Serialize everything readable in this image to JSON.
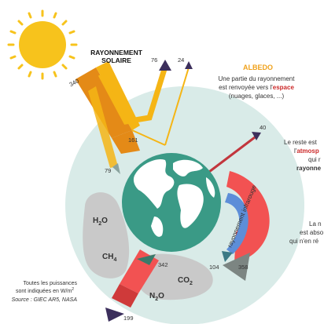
{
  "colors": {
    "sun": "#f7c31c",
    "solar_flow": "#f5b515",
    "solar_flow_dark": "#e48a17",
    "atmosphere": "#d9ebe8",
    "ocean": "#3a9a86",
    "land": "#ffffff",
    "emission_red": "#f25252",
    "ir_red": "#d63a3a",
    "window_blue": "#5d8ed8",
    "gas_blob": "#c9c9c9",
    "dark_arrow": "#3c2f5c",
    "albedo_orange": "#f0a21c",
    "accent_red": "#cc2a2a"
  },
  "solar": {
    "title_line1": "RAYONNEMENT",
    "title_line2": "SOLAIRE",
    "incoming": "340"
  },
  "albedo": {
    "title": "ALBEDO",
    "desc_line1": "Une partie du rayonnement",
    "desc_line2_a": "est renvoyée vers l'",
    "desc_line2_b": "espace",
    "desc_line3": "(nuages, glaces, ...)"
  },
  "values": {
    "reflected_atmosphere": "76",
    "reflected_surface": "24",
    "absorbed_surface": "161",
    "absorbed_atmosphere": "79",
    "ir_to_space": "40",
    "surface_emission": "342",
    "back_radiation": "358",
    "window": "104",
    "outgoing": "199"
  },
  "right_text": {
    "line1": "Le reste est",
    "line2_a": "l'",
    "line2_b": "atmosp",
    "line3": "qui r",
    "line4": "rayonne",
    "line5": "La n",
    "line6": "est abso",
    "line7": "qui n'en ré"
  },
  "gases": {
    "h2o": "H",
    "co2": "CO",
    "ch4": "CH",
    "n2o": "N",
    "o": "O",
    "sub2": "2",
    "sub4": "4"
  },
  "window_label": "rayonnement infrarouge",
  "footnote": {
    "line1": "Toutes les puissances",
    "line2": "sont indiquées en W/m",
    "sup": "2",
    "source": "Source : GIEC AR5, NASA"
  }
}
